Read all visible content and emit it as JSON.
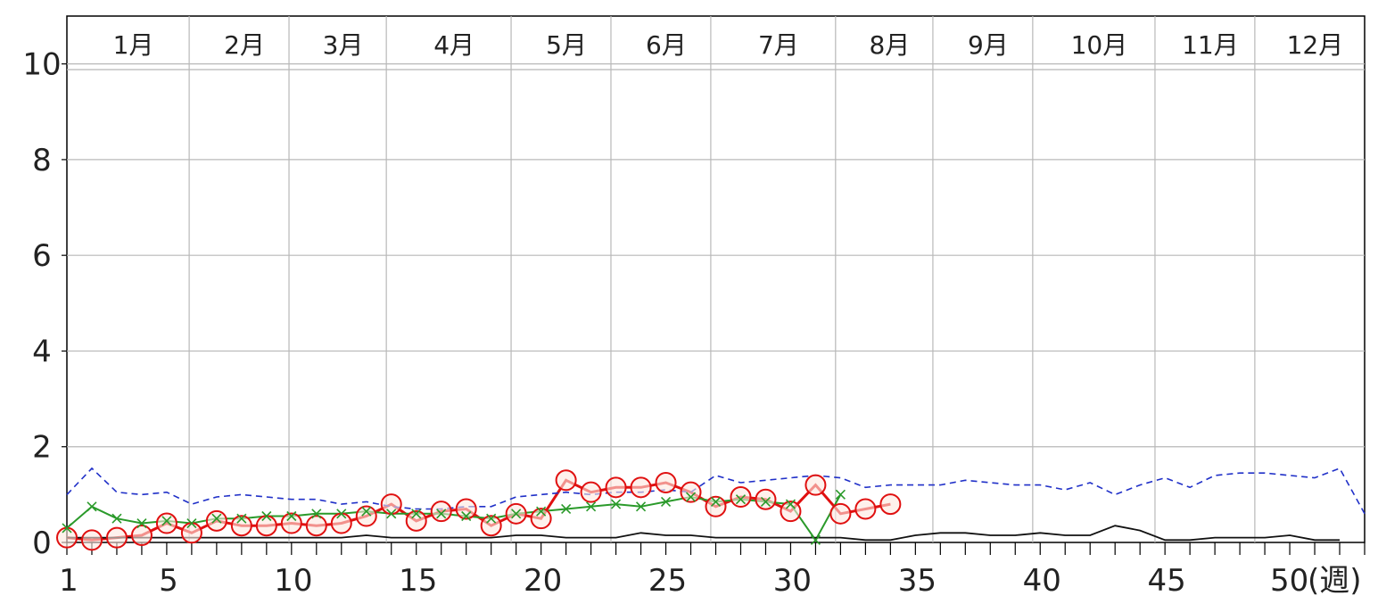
{
  "chart_data": {
    "type": "line",
    "x_axis_unit_label": "(週)",
    "x_tick_labels": [
      "1",
      "5",
      "10",
      "15",
      "20",
      "25",
      "30",
      "35",
      "40",
      "45",
      "50"
    ],
    "x_tick_values": [
      1,
      5,
      10,
      15,
      20,
      25,
      30,
      35,
      40,
      45,
      50
    ],
    "xlim": [
      1,
      53
    ],
    "y_tick_labels": [
      "0",
      "2",
      "4",
      "6",
      "8",
      "10"
    ],
    "y_tick_values": [
      0,
      2,
      4,
      6,
      8,
      10
    ],
    "ylim": [
      0,
      11
    ],
    "grid": true,
    "months": [
      {
        "label": "1月",
        "start_week": 1
      },
      {
        "label": "2月",
        "start_week": 5.9
      },
      {
        "label": "3月",
        "start_week": 9.9
      },
      {
        "label": "4月",
        "start_week": 13.8
      },
      {
        "label": "5月",
        "start_week": 18.8
      },
      {
        "label": "6月",
        "start_week": 22.8
      },
      {
        "label": "7月",
        "start_week": 26.8
      },
      {
        "label": "8月",
        "start_week": 31.8
      },
      {
        "label": "9月",
        "start_week": 35.7
      },
      {
        "label": "10月",
        "start_week": 39.7
      },
      {
        "label": "11月",
        "start_week": 44.6
      },
      {
        "label": "12月",
        "start_week": 48.6
      }
    ],
    "series": [
      {
        "style": "red-circles",
        "color": "#e01010",
        "x": [
          1,
          2,
          3,
          4,
          5,
          6,
          7,
          8,
          9,
          10,
          11,
          12,
          13,
          14,
          15,
          16,
          17,
          18,
          19,
          20,
          21,
          22,
          23,
          24,
          25,
          26,
          27,
          28,
          29,
          30,
          31,
          32,
          33,
          34
        ],
        "values": [
          0.1,
          0.05,
          0.1,
          0.15,
          0.4,
          0.2,
          0.45,
          0.35,
          0.35,
          0.4,
          0.35,
          0.4,
          0.55,
          0.8,
          0.45,
          0.65,
          0.7,
          0.35,
          0.6,
          0.5,
          1.3,
          1.05,
          1.15,
          1.15,
          1.25,
          1.05,
          0.75,
          0.95,
          0.9,
          0.65,
          1.2,
          0.6,
          0.7,
          0.8
        ]
      },
      {
        "style": "green-crosses",
        "color": "#2a9a2a",
        "x": [
          1,
          2,
          3,
          4,
          5,
          6,
          7,
          8,
          9,
          10,
          11,
          12,
          13,
          14,
          15,
          16,
          17,
          18,
          19,
          20,
          21,
          22,
          23,
          24,
          25,
          26,
          27,
          28,
          29,
          30,
          31,
          32
        ],
        "values": [
          0.3,
          0.75,
          0.5,
          0.4,
          0.45,
          0.4,
          0.5,
          0.5,
          0.55,
          0.55,
          0.6,
          0.6,
          0.65,
          0.6,
          0.6,
          0.6,
          0.55,
          0.5,
          0.6,
          0.65,
          0.7,
          0.75,
          0.8,
          0.75,
          0.85,
          0.95,
          0.85,
          0.9,
          0.85,
          0.8,
          0.05,
          1.0
        ]
      },
      {
        "style": "blue-dashed",
        "color": "#2030c8",
        "x": [
          1,
          2,
          3,
          4,
          5,
          6,
          7,
          8,
          9,
          10,
          11,
          12,
          13,
          14,
          15,
          16,
          17,
          18,
          19,
          20,
          21,
          22,
          23,
          24,
          25,
          26,
          27,
          28,
          29,
          30,
          31,
          32,
          33,
          34,
          35,
          36,
          37,
          38,
          39,
          40,
          41,
          42,
          43,
          44,
          45,
          46,
          47,
          48,
          49,
          50,
          51,
          52,
          53
        ],
        "values": [
          1.0,
          1.55,
          1.05,
          1.0,
          1.05,
          0.8,
          0.95,
          1.0,
          0.95,
          0.9,
          0.9,
          0.8,
          0.85,
          0.75,
          0.7,
          0.7,
          0.75,
          0.75,
          0.95,
          1.0,
          1.05,
          1.0,
          1.05,
          1.05,
          1.1,
          1.05,
          1.4,
          1.25,
          1.3,
          1.35,
          1.4,
          1.35,
          1.15,
          1.2,
          1.2,
          1.2,
          1.3,
          1.25,
          1.2,
          1.2,
          1.1,
          1.25,
          1.0,
          1.2,
          1.35,
          1.15,
          1.4,
          1.45,
          1.45,
          1.4,
          1.35,
          1.55,
          0.6
        ]
      },
      {
        "style": "black-solid",
        "color": "#111111",
        "x": [
          1,
          2,
          3,
          4,
          5,
          6,
          7,
          8,
          9,
          10,
          11,
          12,
          13,
          14,
          15,
          16,
          17,
          18,
          19,
          20,
          21,
          22,
          23,
          24,
          25,
          26,
          27,
          28,
          29,
          30,
          31,
          32,
          33,
          34,
          35,
          36,
          37,
          38,
          39,
          40,
          41,
          42,
          43,
          44,
          45,
          46,
          47,
          48,
          49,
          50,
          51,
          52
        ],
        "values": [
          0.1,
          0.1,
          0.1,
          0.1,
          0.1,
          0.1,
          0.1,
          0.1,
          0.1,
          0.1,
          0.1,
          0.1,
          0.15,
          0.1,
          0.1,
          0.1,
          0.1,
          0.1,
          0.15,
          0.15,
          0.1,
          0.1,
          0.1,
          0.2,
          0.15,
          0.15,
          0.1,
          0.1,
          0.1,
          0.1,
          0.1,
          0.1,
          0.05,
          0.05,
          0.15,
          0.2,
          0.2,
          0.15,
          0.15,
          0.2,
          0.15,
          0.15,
          0.35,
          0.25,
          0.05,
          0.05,
          0.1,
          0.1,
          0.1,
          0.15,
          0.05,
          0.05
        ]
      }
    ]
  }
}
